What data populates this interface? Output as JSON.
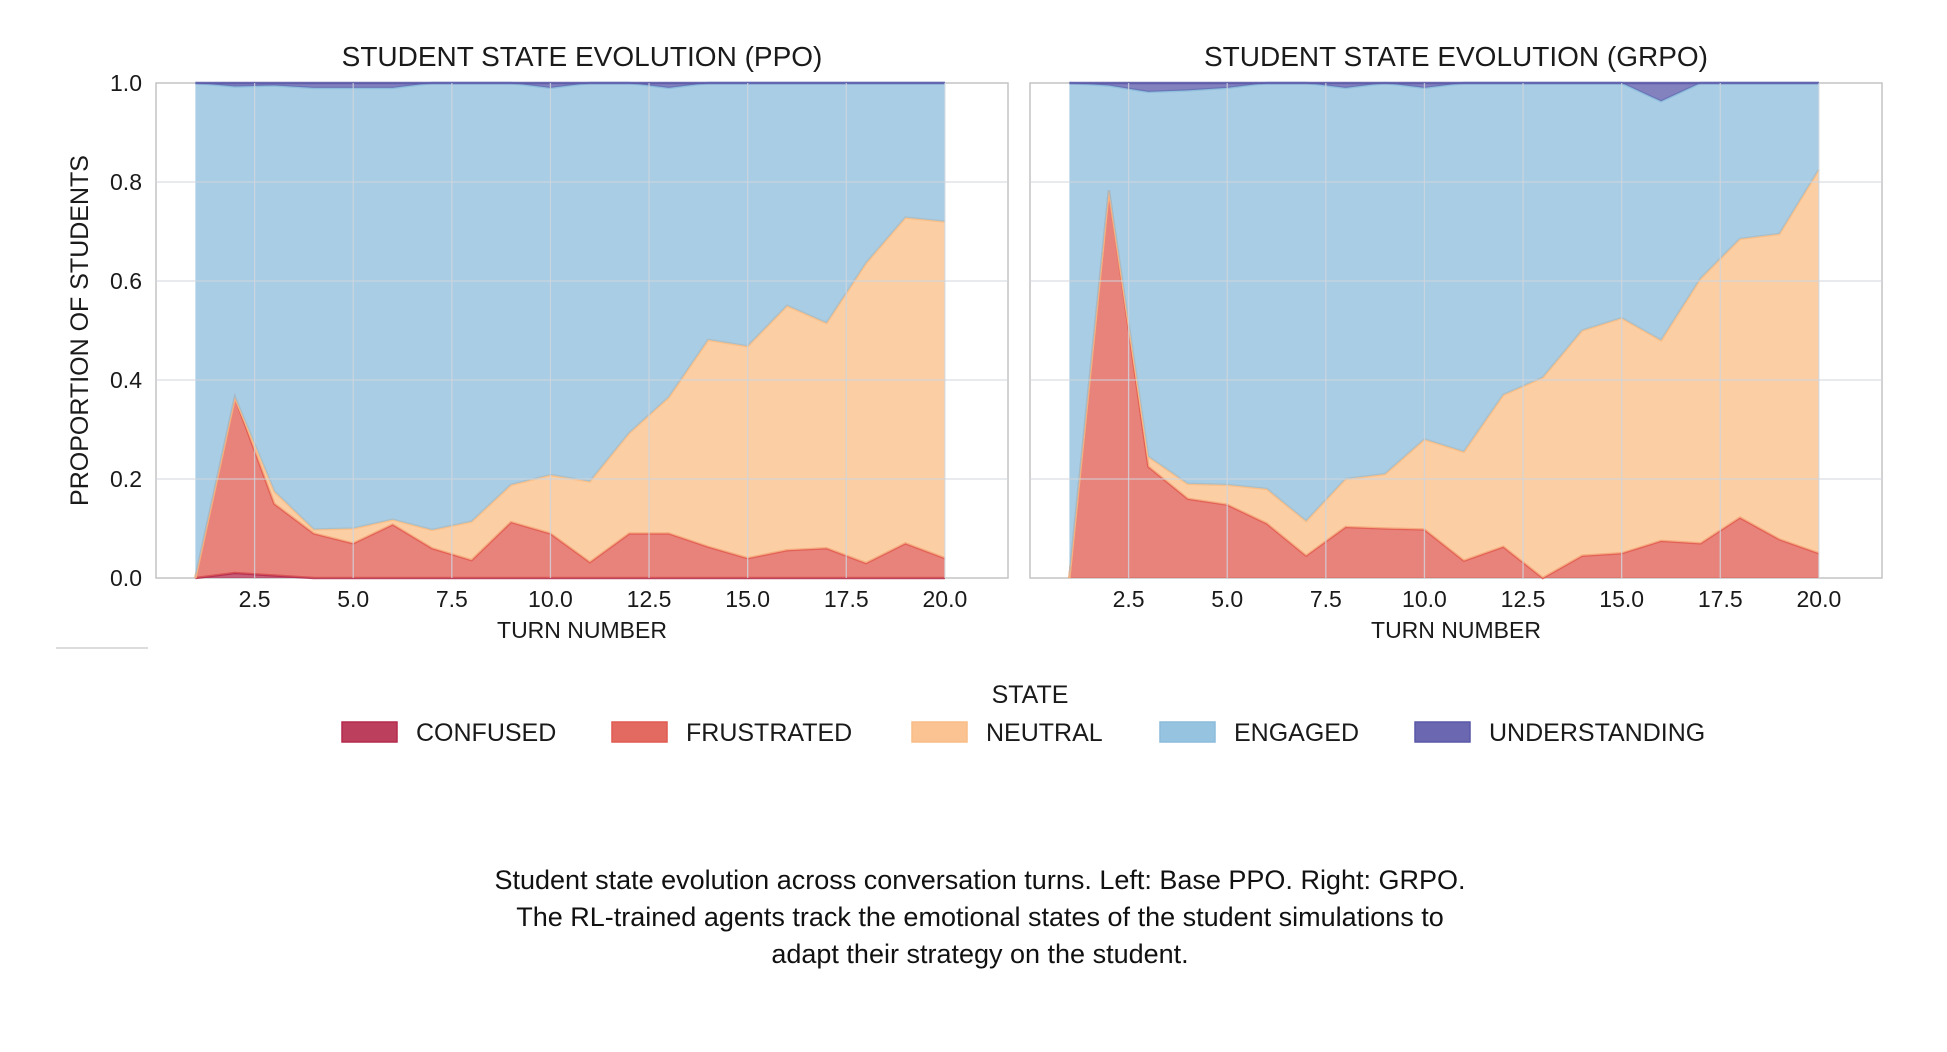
{
  "colors": {
    "confused": "#b52a4c",
    "frustrated": "#e05a50",
    "neutral": "#f9bd85",
    "engaged": "#8bbcdc",
    "understanding": "#5b58a8",
    "grid": "#cfd6dd",
    "frame": "#c4c4c4"
  },
  "chart_data": [
    {
      "type": "area",
      "stacked": true,
      "title": "STUDENT STATE EVOLUTION (PPO)",
      "xlabel": "TURN NUMBER",
      "ylabel": "PROPORTION OF STUDENTS",
      "xlim": [
        0.0,
        21.6
      ],
      "ylim": [
        0.0,
        1.0
      ],
      "xticks": [
        2.5,
        5.0,
        7.5,
        10.0,
        12.5,
        15.0,
        17.5,
        20.0
      ],
      "xtick_labels": [
        "2.5",
        "5.0",
        "7.5",
        "10.0",
        "12.5",
        "15.0",
        "17.5",
        "20.0"
      ],
      "yticks": [
        0.0,
        0.2,
        0.4,
        0.6,
        0.8,
        1.0
      ],
      "ytick_labels": [
        "0.0",
        "0.2",
        "0.4",
        "0.6",
        "0.8",
        "1.0"
      ],
      "grid": true,
      "x": [
        1,
        2,
        3,
        4,
        5,
        6,
        7,
        8,
        9,
        10,
        11,
        12,
        13,
        14,
        15,
        16,
        17,
        18,
        19,
        20
      ],
      "series": [
        {
          "name": "CONFUSED",
          "values": [
            0,
            0.01,
            0.005,
            0,
            0,
            0,
            0,
            0,
            0,
            0,
            0,
            0,
            0,
            0,
            0,
            0,
            0,
            0,
            0,
            0
          ]
        },
        {
          "name": "FRUSTRATED",
          "values": [
            0,
            0.355,
            0.145,
            0.09,
            0.07,
            0.108,
            0.06,
            0.036,
            0.113,
            0.09,
            0.032,
            0.09,
            0.09,
            0.063,
            0.04,
            0.056,
            0.06,
            0.03,
            0.07,
            0.04
          ]
        },
        {
          "name": "NEUTRAL",
          "values": [
            0,
            0,
            0.025,
            0.008,
            0.03,
            0.01,
            0.037,
            0.078,
            0.075,
            0.118,
            0.163,
            0.203,
            0.275,
            0.418,
            0.428,
            0.494,
            0.455,
            0.606,
            0.658,
            0.68
          ]
        },
        {
          "name": "ENGAGED",
          "values": [
            1,
            0.628,
            0.82,
            0.892,
            0.89,
            0.872,
            0.903,
            0.886,
            0.812,
            0.782,
            0.805,
            0.707,
            0.625,
            0.519,
            0.532,
            0.45,
            0.485,
            0.364,
            0.272,
            0.28
          ]
        },
        {
          "name": "UNDERSTANDING",
          "values": [
            0,
            0.007,
            0.005,
            0.01,
            0.01,
            0.01,
            0,
            0,
            0,
            0.01,
            0,
            0,
            0.01,
            0,
            0,
            0,
            0,
            0,
            0,
            0
          ]
        }
      ]
    },
    {
      "type": "area",
      "stacked": true,
      "title": "STUDENT STATE EVOLUTION (GRPO)",
      "xlabel": "TURN NUMBER",
      "ylabel": "",
      "xlim": [
        0.0,
        21.6
      ],
      "ylim": [
        0.0,
        1.0
      ],
      "xticks": [
        2.5,
        5.0,
        7.5,
        10.0,
        12.5,
        15.0,
        17.5,
        20.0
      ],
      "xtick_labels": [
        "2.5",
        "5.0",
        "7.5",
        "10.0",
        "12.5",
        "15.0",
        "17.5",
        "20.0"
      ],
      "grid": true,
      "x": [
        1,
        2,
        3,
        4,
        5,
        6,
        7,
        8,
        9,
        10,
        11,
        12,
        13,
        14,
        15,
        16,
        17,
        18,
        19,
        20
      ],
      "series": [
        {
          "name": "CONFUSED",
          "values": [
            0,
            0,
            0,
            0,
            0,
            0,
            0,
            0,
            0,
            0,
            0,
            0,
            0,
            0,
            0,
            0,
            0,
            0,
            0,
            0
          ]
        },
        {
          "name": "FRUSTRATED",
          "values": [
            0,
            0.783,
            0.225,
            0.16,
            0.148,
            0.11,
            0.045,
            0.103,
            0.1,
            0.098,
            0.035,
            0.063,
            0,
            0.045,
            0.05,
            0.075,
            0.07,
            0.122,
            0.078,
            0.05
          ]
        },
        {
          "name": "NEUTRAL",
          "values": [
            0,
            0,
            0.02,
            0.03,
            0.04,
            0.07,
            0.07,
            0.097,
            0.11,
            0.182,
            0.22,
            0.307,
            0.405,
            0.455,
            0.475,
            0.405,
            0.535,
            0.563,
            0.617,
            0.775
          ]
        },
        {
          "name": "ENGAGED",
          "values": [
            1,
            0.212,
            0.737,
            0.795,
            0.802,
            0.82,
            0.885,
            0.79,
            0.79,
            0.71,
            0.745,
            0.63,
            0.595,
            0.5,
            0.475,
            0.483,
            0.395,
            0.315,
            0.305,
            0.175
          ]
        },
        {
          "name": "UNDERSTANDING",
          "values": [
            0,
            0.005,
            0.018,
            0.015,
            0.01,
            0,
            0,
            0.01,
            0,
            0.01,
            0,
            0,
            0,
            0,
            0,
            0.037,
            0,
            0,
            0,
            0
          ]
        }
      ]
    }
  ],
  "legend": {
    "title": "STATE",
    "items": [
      {
        "label": "CONFUSED",
        "key": "confused"
      },
      {
        "label": "FRUSTRATED",
        "key": "frustrated"
      },
      {
        "label": "NEUTRAL",
        "key": "neutral"
      },
      {
        "label": "ENGAGED",
        "key": "engaged"
      },
      {
        "label": "UNDERSTANDING",
        "key": "understanding"
      }
    ]
  },
  "caption": {
    "line1": "Student state evolution across conversation turns. Left: Base PPO. Right: GRPO.",
    "line2": "The RL-trained agents track the emotional states of the student simulations to",
    "line3": "adapt their strategy on the student."
  }
}
